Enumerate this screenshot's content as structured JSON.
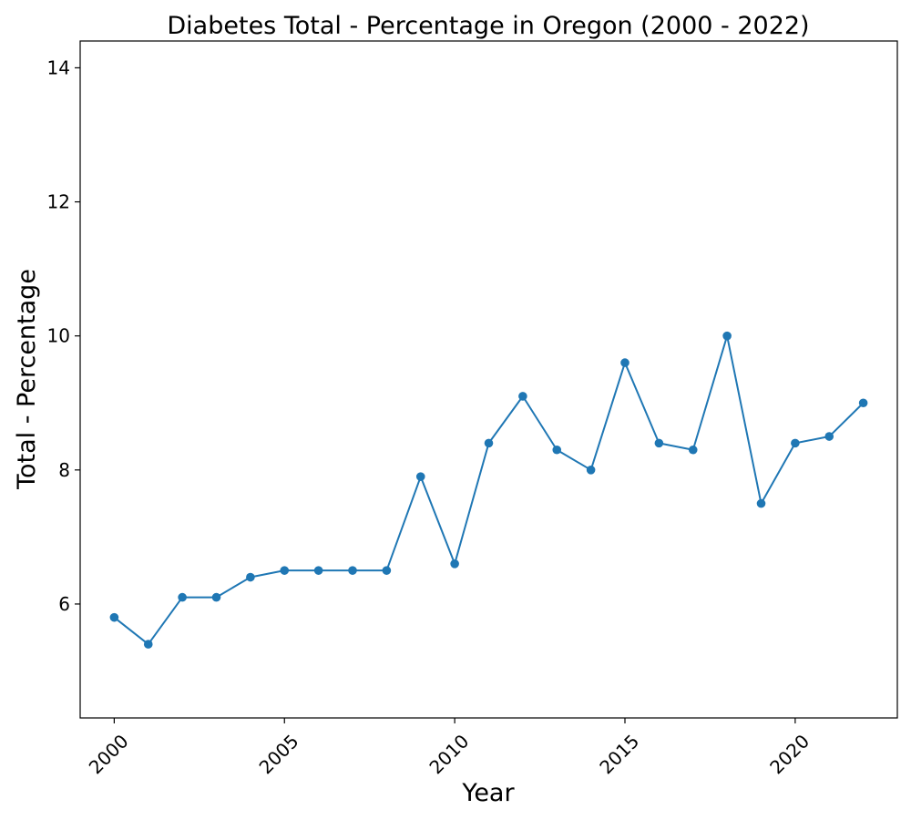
{
  "chart_data": {
    "type": "line",
    "title": "Diabetes Total - Percentage in Oregon (2000 - 2022)",
    "xlabel": "Year",
    "ylabel": "Total - Percentage",
    "xlim": [
      1999.0,
      2023.0
    ],
    "ylim": [
      4.3,
      14.4
    ],
    "x_ticks": [
      2000,
      2005,
      2010,
      2015,
      2020
    ],
    "x_tick_labels": [
      "2000",
      "2005",
      "2010",
      "2015",
      "2020"
    ],
    "y_ticks": [
      6,
      8,
      10,
      12,
      14
    ],
    "y_tick_labels": [
      "6",
      "8",
      "10",
      "12",
      "14"
    ],
    "x_tick_rotation_deg": -45,
    "grid": false,
    "legend": "none",
    "series": [
      {
        "color": "#1f77b4",
        "marker": "circle",
        "x": [
          2000,
          2001,
          2002,
          2003,
          2004,
          2005,
          2006,
          2007,
          2008,
          2009,
          2010,
          2011,
          2012,
          2013,
          2014,
          2015,
          2016,
          2017,
          2018,
          2019,
          2020,
          2021,
          2022
        ],
        "y": [
          5.8,
          5.4,
          6.1,
          6.1,
          6.4,
          6.5,
          6.5,
          6.5,
          6.5,
          7.9,
          6.6,
          8.4,
          9.1,
          8.3,
          8.0,
          9.6,
          8.4,
          8.3,
          10.0,
          7.5,
          8.4,
          8.5,
          9.0
        ]
      }
    ]
  }
}
